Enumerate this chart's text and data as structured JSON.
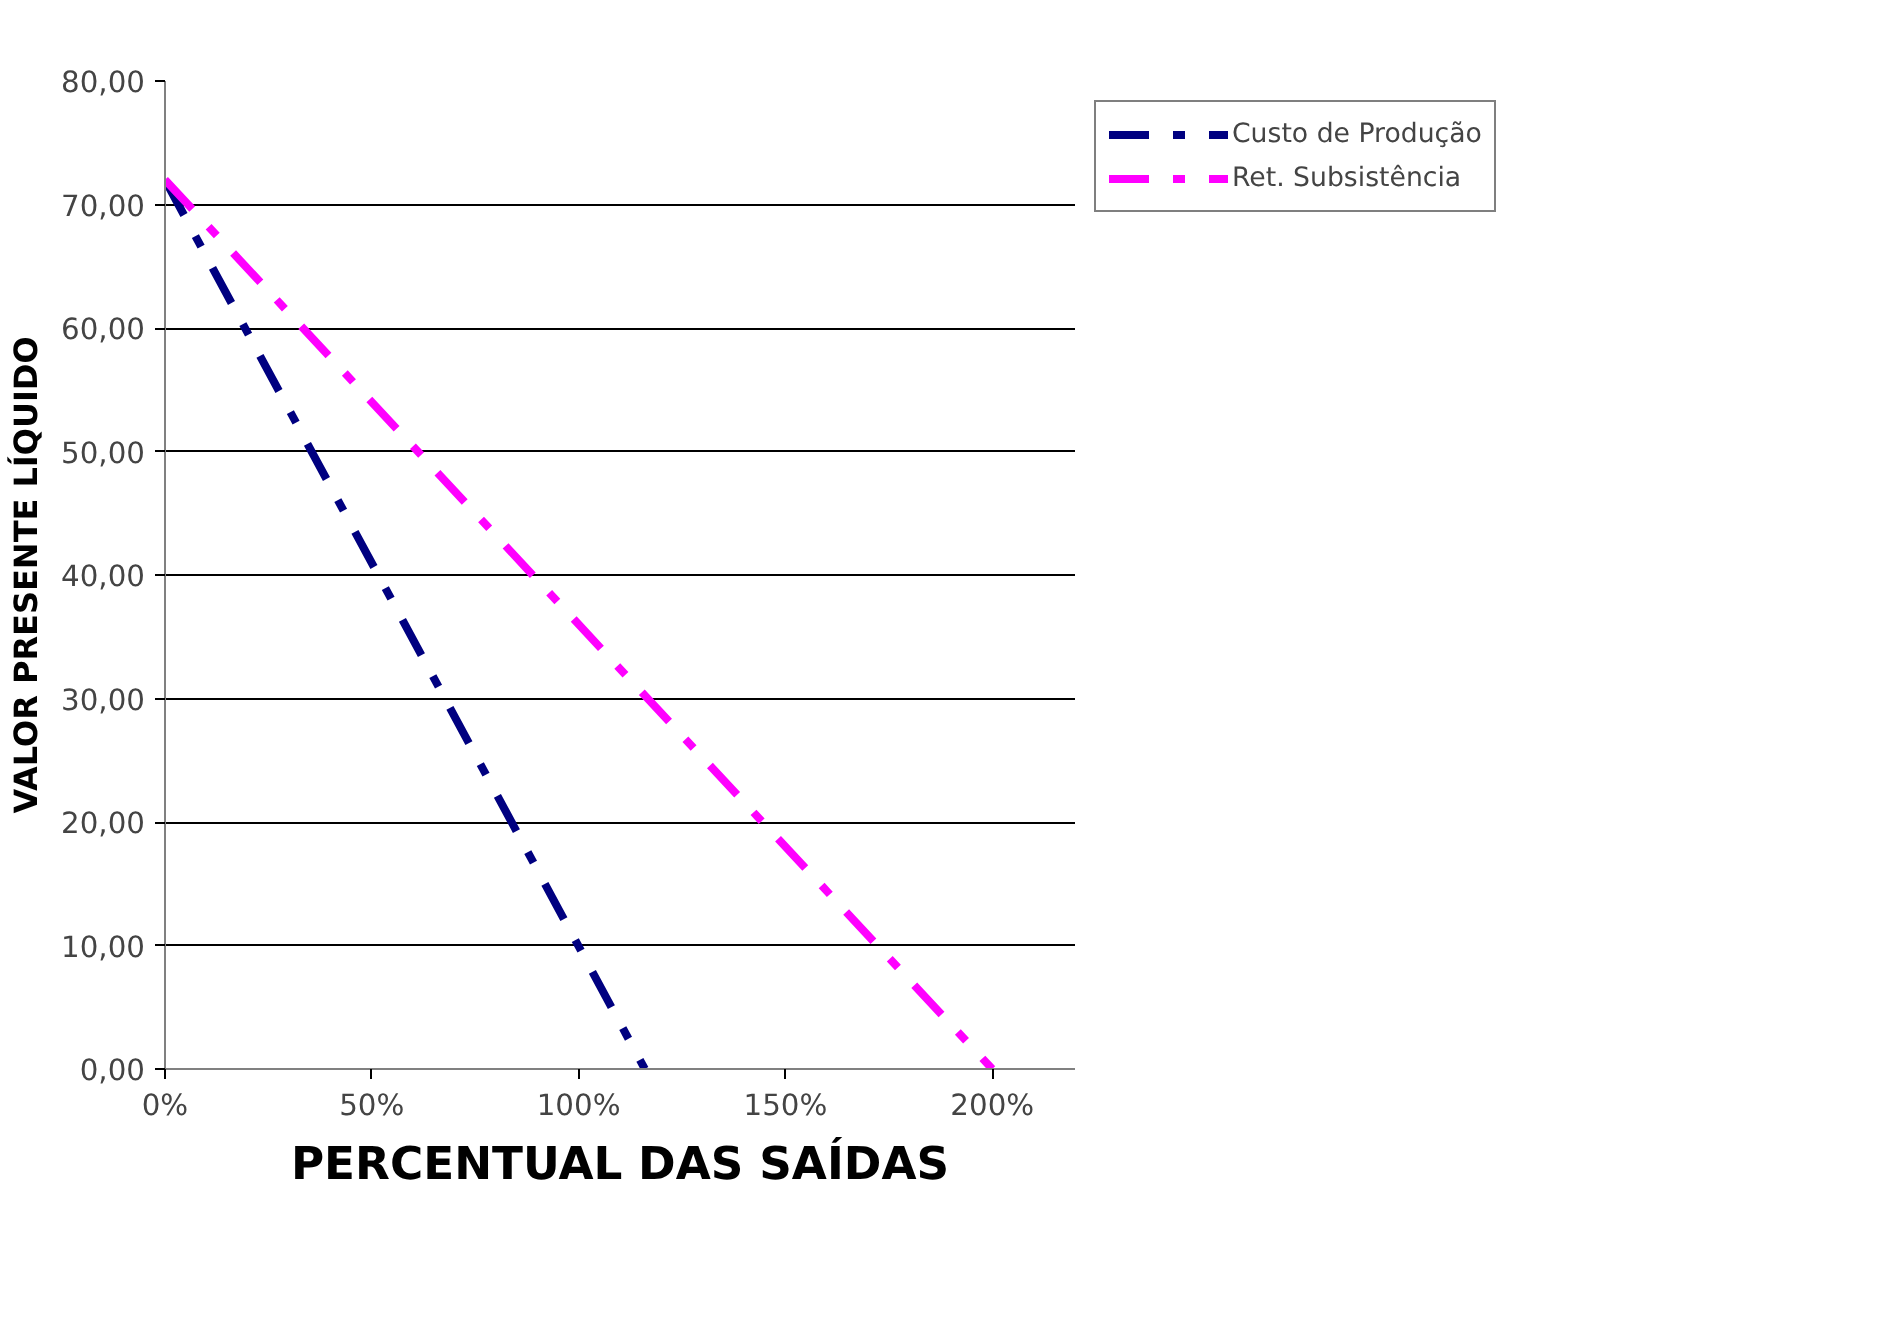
{
  "chart_data": {
    "type": "line",
    "xlabel": "PERCENTUAL DAS SAÍDAS",
    "ylabel": "VALOR PRESENTE LÍQUIDO",
    "series": [
      {
        "name": "Custo de Produção",
        "color": "#000080",
        "x": [
          0,
          116
        ],
        "values": [
          72,
          0
        ]
      },
      {
        "name": "Ret. Subsistência",
        "color": "#ff00ff",
        "x": [
          0,
          200
        ],
        "values": [
          72,
          0
        ]
      }
    ],
    "xlim": [
      0,
      220
    ],
    "xticks": [
      {
        "value": 0,
        "label": "0%"
      },
      {
        "value": 50,
        "label": "50%"
      },
      {
        "value": 100,
        "label": "100%"
      },
      {
        "value": 150,
        "label": "150%"
      },
      {
        "value": 200,
        "label": "200%"
      }
    ],
    "ylim": [
      0,
      80
    ],
    "yticks": [
      {
        "value": 0,
        "label": "0,00"
      },
      {
        "value": 10,
        "label": "10,00"
      },
      {
        "value": 20,
        "label": "20,00"
      },
      {
        "value": 30,
        "label": "30,00"
      },
      {
        "value": 40,
        "label": "40,00"
      },
      {
        "value": 50,
        "label": "50,00"
      },
      {
        "value": 60,
        "label": "60,00"
      },
      {
        "value": 70,
        "label": "70,00"
      },
      {
        "value": 80,
        "label": "80,00"
      }
    ],
    "grid": "y",
    "legend": "right",
    "line_style": "dashed",
    "marker": "none"
  }
}
